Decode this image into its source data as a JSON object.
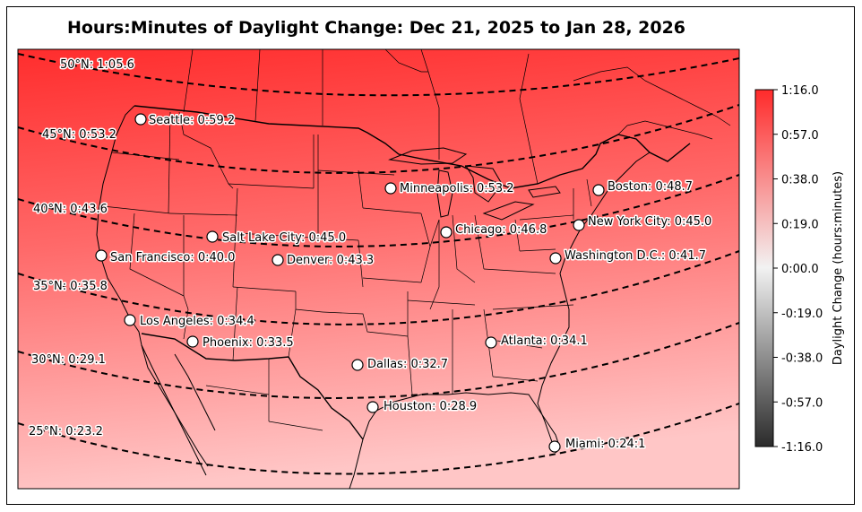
{
  "title": "Hours:Minutes of Daylight Change: Dec 21, 2025 to Jan 28, 2026",
  "colorbar": {
    "label": "Daylight Change (hours:minutes)",
    "ticks": [
      "1:16.0",
      "0:57.0",
      "0:38.0",
      "0:19.0",
      "0:00.0",
      "-0:19.0",
      "-0:38.0",
      "-0:57.0",
      "-1:16.0"
    ],
    "min_minutes": -76,
    "max_minutes": 76,
    "positive_color": "#ff2a2a",
    "zero_color": "#f2f2f2",
    "negative_color": "#2b2b2b"
  },
  "latitude_lines": [
    {
      "label": "50°N: 1:05.6"
    },
    {
      "label": "45°N: 0:53.2"
    },
    {
      "label": "40°N: 0:43.6"
    },
    {
      "label": "35°N: 0:35.8"
    },
    {
      "label": "30°N: 0:29.1"
    },
    {
      "label": "25°N: 0:23.2"
    }
  ],
  "cities": [
    {
      "label": "Seattle: 0:59.2"
    },
    {
      "label": "Minneapolis: 0:53.2"
    },
    {
      "label": "Boston: 0:48.7"
    },
    {
      "label": "New York City: 0:45.0"
    },
    {
      "label": "Chicago: 0:46.8"
    },
    {
      "label": "Salt Lake City: 0:45.0"
    },
    {
      "label": "San Francisco: 0:40.0"
    },
    {
      "label": "Denver: 0:43.3"
    },
    {
      "label": "Washington D.C.: 0:41.7"
    },
    {
      "label": "Los Angeles: 0:34.4"
    },
    {
      "label": "Phoenix: 0:33.5"
    },
    {
      "label": "Atlanta: 0:34.1"
    },
    {
      "label": "Dallas: 0:32.7"
    },
    {
      "label": "Houston: 0:28.9"
    },
    {
      "label": "Miami: 0:24:1"
    }
  ]
}
